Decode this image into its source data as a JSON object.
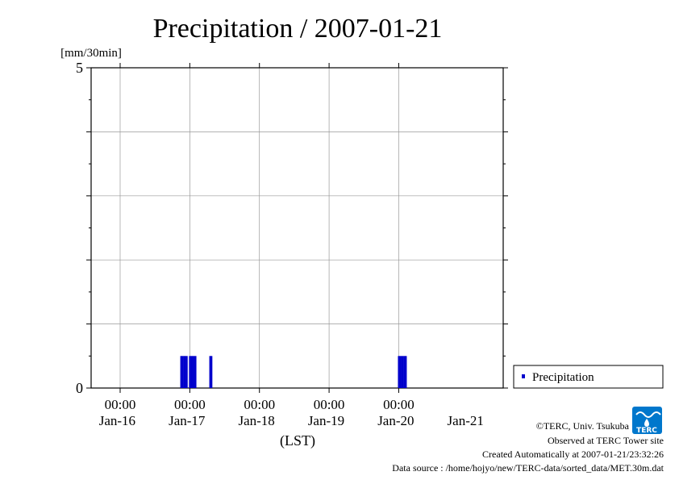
{
  "chart_data": {
    "type": "bar",
    "title": "Precipitation / 2007-01-21",
    "ylabel": "[mm/30min]",
    "xlabel": "(LST)",
    "ylim": [
      0,
      5
    ],
    "ytick_labels": [
      "0",
      "5"
    ],
    "x_range": [
      "2007-01-15T14:00",
      "2007-01-21T12:00"
    ],
    "time_ticks": [
      {
        "time": "2007-01-16T00:00",
        "label": "00:00"
      },
      {
        "time": "2007-01-17T00:00",
        "label": "00:00"
      },
      {
        "time": "2007-01-18T00:00",
        "label": "00:00"
      },
      {
        "time": "2007-01-19T00:00",
        "label": "00:00"
      },
      {
        "time": "2007-01-20T00:00",
        "label": "00:00"
      }
    ],
    "date_labels": [
      {
        "time": "2007-01-15T23:00",
        "label": "Jan-16"
      },
      {
        "time": "2007-01-16T23:00",
        "label": "Jan-17"
      },
      {
        "time": "2007-01-17T23:00",
        "label": "Jan-18"
      },
      {
        "time": "2007-01-18T23:00",
        "label": "Jan-19"
      },
      {
        "time": "2007-01-19T23:00",
        "label": "Jan-20"
      },
      {
        "time": "2007-01-20T23:00",
        "label": "Jan-21"
      }
    ],
    "grid": true,
    "legend": "right",
    "series": [
      {
        "name": "Precipitation",
        "color": "#0000cc",
        "points": [
          {
            "time": "2007-01-16T21:00",
            "value": 0.5
          },
          {
            "time": "2007-01-16T21:30",
            "value": 0.5
          },
          {
            "time": "2007-01-16T22:00",
            "value": 0.5
          },
          {
            "time": "2007-01-16T22:30",
            "value": 0.5
          },
          {
            "time": "2007-01-16T23:00",
            "value": 0.5
          },
          {
            "time": "2007-01-17T00:00",
            "value": 0.5
          },
          {
            "time": "2007-01-17T00:30",
            "value": 0.5
          },
          {
            "time": "2007-01-17T01:00",
            "value": 0.5
          },
          {
            "time": "2007-01-17T01:30",
            "value": 0.5
          },
          {
            "time": "2007-01-17T02:00",
            "value": 0.5
          },
          {
            "time": "2007-01-17T07:00",
            "value": 0.5
          },
          {
            "time": "2007-01-17T07:30",
            "value": 0.5
          },
          {
            "time": "2007-01-20T00:00",
            "value": 0.5
          },
          {
            "time": "2007-01-20T00:30",
            "value": 0.5
          },
          {
            "time": "2007-01-20T01:00",
            "value": 0.5
          },
          {
            "time": "2007-01-20T01:30",
            "value": 0.5
          },
          {
            "time": "2007-01-20T02:00",
            "value": 0.5
          },
          {
            "time": "2007-01-20T02:30",
            "value": 0.5
          }
        ]
      }
    ]
  },
  "credits": {
    "copyright": "©TERC, Univ. Tsukuba",
    "observed": "Observed at TERC Tower site",
    "created": "Created Automatically at 2007-01-21/23:32:26",
    "source": "Data source : /home/hojyo/new/TERC-data/sorted_data/MET.30m.dat",
    "logo_text": "TERC"
  }
}
